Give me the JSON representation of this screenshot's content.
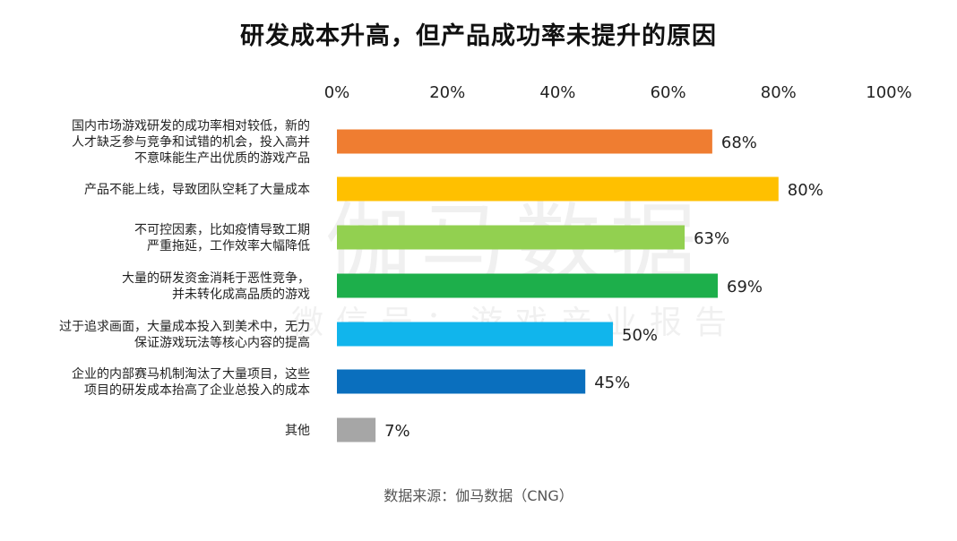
{
  "chart_data": {
    "type": "bar",
    "orientation": "horizontal",
    "title": "研发成本升高，但产品成功率未提升的原因",
    "source": "数据来源：伽马数据（CNG）",
    "xlim": [
      0,
      100
    ],
    "x_ticks": [
      "0%",
      "20%",
      "40%",
      "60%",
      "80%",
      "100%"
    ],
    "grid": false,
    "categories": [
      [
        "国内市场游戏研发的成功率相对较低，新的",
        "人才缺乏参与竞争和试错的机会，投入高并",
        "不意味能生产出优质的游戏产品"
      ],
      [
        "产品不能上线，导致团队空耗了大量成本"
      ],
      [
        "不可控因素，比如疫情导致工期",
        "严重拖延，工作效率大幅降低"
      ],
      [
        "大量的研发资金消耗于恶性竞争，",
        "并未转化成高品质的游戏"
      ],
      [
        "过于追求画面，大量成本投入到美术中，无力",
        "保证游戏玩法等核心内容的提高"
      ],
      [
        "企业的内部赛马机制淘汰了大量项目，这些",
        "项目的研发成本抬高了企业总投入的成本"
      ],
      [
        "其他"
      ]
    ],
    "values": [
      68,
      80,
      63,
      69,
      50,
      45,
      7
    ],
    "data_labels": [
      "68%",
      "80%",
      "63%",
      "69%",
      "50%",
      "45%",
      "7%"
    ],
    "colors": [
      "#EF7D31",
      "#FFC000",
      "#92D050",
      "#1DAF4B",
      "#11B5EC",
      "#0A6FBE",
      "#A6A6A6"
    ]
  },
  "watermark": {
    "main": "伽马数据",
    "sub": "微信号：游戏产业报告"
  }
}
